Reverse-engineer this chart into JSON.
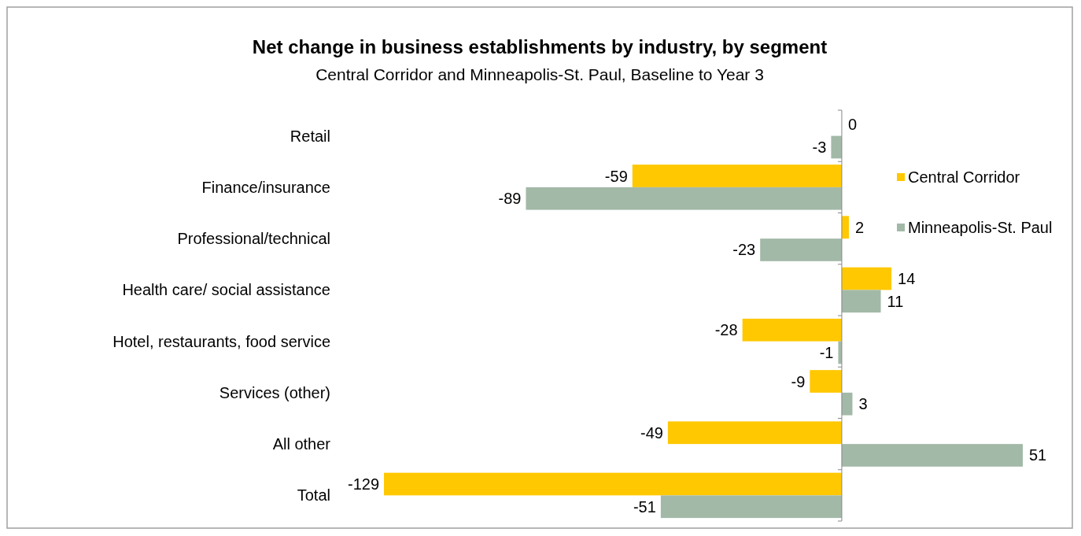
{
  "chart_data": {
    "type": "bar",
    "orientation": "horizontal",
    "title": "Net change in business establishments by industry, by segment",
    "subtitle": "Central Corridor and Minneapolis-St. Paul, Baseline to Year 3",
    "categories": [
      "Retail",
      "Finance/insurance",
      "Professional/technical",
      "Health care/ social assistance",
      "Hotel, restaurants, food service",
      "Services (other)",
      "All other",
      "Total"
    ],
    "series": [
      {
        "name": "Central Corridor",
        "color": "#ffc800",
        "values": [
          0,
          -59,
          2,
          14,
          -28,
          -9,
          -49,
          -129
        ]
      },
      {
        "name": "Minneapolis-St. Paul",
        "color": "#a3b9a8",
        "values": [
          -3,
          -89,
          -23,
          11,
          -1,
          3,
          51,
          -51
        ]
      }
    ],
    "data_labels": true,
    "legend": "top right"
  }
}
